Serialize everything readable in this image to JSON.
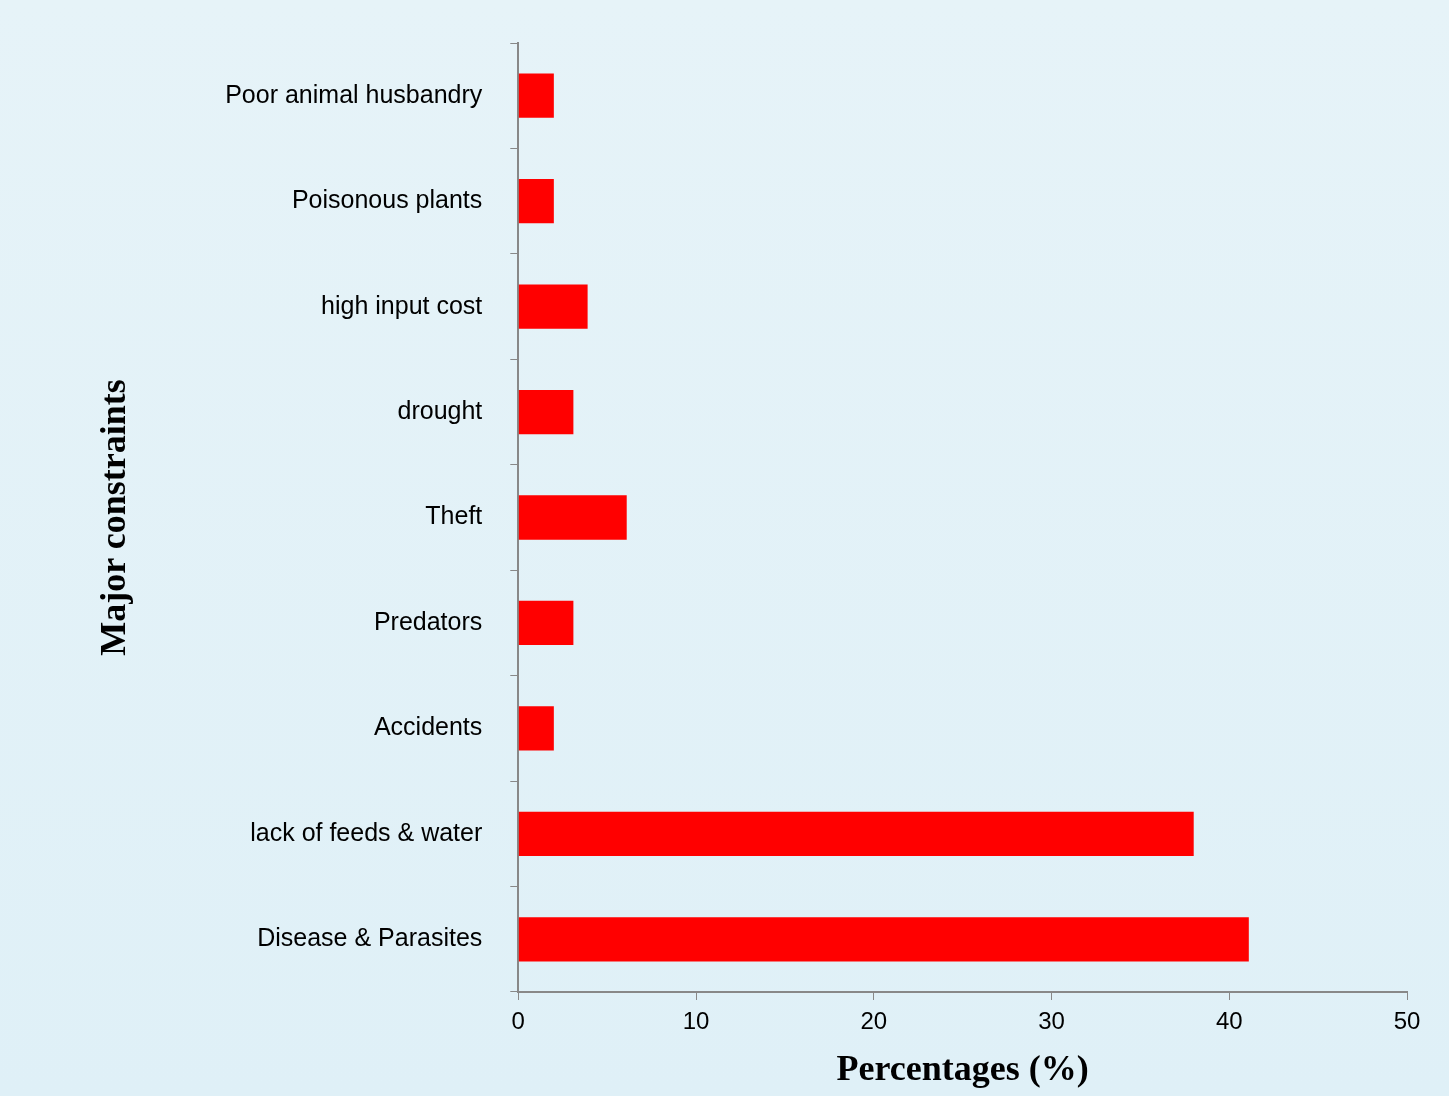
{
  "chart_data": {
    "type": "bar",
    "orientation": "horizontal",
    "categories": [
      "Poor animal husbandry",
      "Poisonous plants",
      "high input cost",
      "drought",
      "Theft",
      "Predators",
      "Accidents",
      "lack of feeds & water",
      "Disease & Parasites"
    ],
    "values": [
      2,
      2,
      3.9,
      3.1,
      6.1,
      3.1,
      2,
      38,
      41.1
    ],
    "color": "#ff0000",
    "xlim": [
      0,
      50
    ],
    "xticks": [
      0,
      10,
      20,
      30,
      40,
      50
    ],
    "xlabel": "Percentages (%)",
    "ylabel": "Major constraints",
    "grid": false,
    "legend": false
  }
}
